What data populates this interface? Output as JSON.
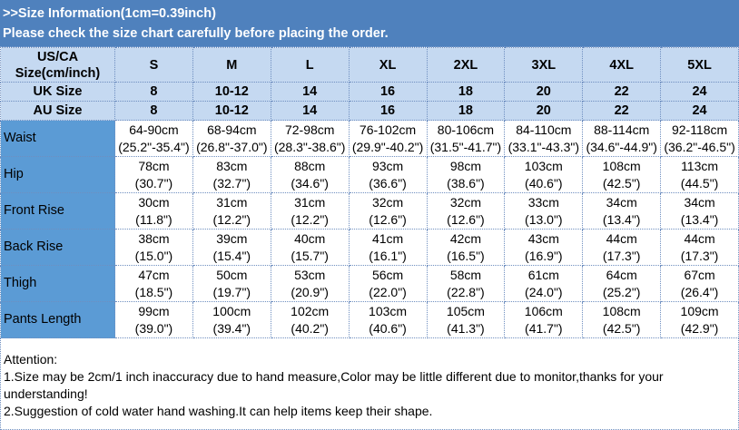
{
  "header": {
    "title": ">>Size Information(1cm=0.39inch)",
    "subtitle": "Please check the size chart carefully before placing the order."
  },
  "size_header": {
    "label": "US/CA Size(cm/inch)",
    "sizes": [
      "S",
      "M",
      "L",
      "XL",
      "2XL",
      "3XL",
      "4XL",
      "5XL"
    ]
  },
  "uk": {
    "label": "UK Size",
    "values": [
      "8",
      "10-12",
      "14",
      "16",
      "18",
      "20",
      "22",
      "24"
    ]
  },
  "au": {
    "label": "AU Size",
    "values": [
      "8",
      "10-12",
      "14",
      "16",
      "18",
      "20",
      "22",
      "24"
    ]
  },
  "rows": [
    {
      "label": "Waist",
      "cm": [
        "64-90cm",
        "68-94cm",
        "72-98cm",
        "76-102cm",
        "80-106cm",
        "84-110cm",
        "88-114cm",
        "92-118cm"
      ],
      "inch": [
        "(25.2\"-35.4\")",
        "(26.8\"-37.0\")",
        "(28.3\"-38.6\")",
        "(29.9\"-40.2\")",
        "(31.5\"-41.7\")",
        "(33.1\"-43.3\")",
        "(34.6\"-44.9\")",
        "(36.2\"-46.5\")"
      ]
    },
    {
      "label": "Hip",
      "cm": [
        "78cm",
        "83cm",
        "88cm",
        "93cm",
        "98cm",
        "103cm",
        "108cm",
        "113cm"
      ],
      "inch": [
        "(30.7\")",
        "(32.7\")",
        "(34.6\")",
        "(36.6\")",
        "(38.6\")",
        "(40.6\")",
        "(42.5\")",
        "(44.5\")"
      ]
    },
    {
      "label": "Front Rise",
      "cm": [
        "30cm",
        "31cm",
        "31cm",
        "32cm",
        "32cm",
        "33cm",
        "34cm",
        "34cm"
      ],
      "inch": [
        "(11.8\")",
        "(12.2\")",
        "(12.2\")",
        "(12.6\")",
        "(12.6\")",
        "(13.0\")",
        "(13.4\")",
        "(13.4\")"
      ]
    },
    {
      "label": "Back Rise",
      "cm": [
        "38cm",
        "39cm",
        "40cm",
        "41cm",
        "42cm",
        "43cm",
        "44cm",
        "44cm"
      ],
      "inch": [
        "(15.0\")",
        "(15.4\")",
        "(15.7\")",
        "(16.1\")",
        "(16.5\")",
        "(16.9\")",
        "(17.3\")",
        "(17.3\")"
      ]
    },
    {
      "label": "Thigh",
      "cm": [
        "47cm",
        "50cm",
        "53cm",
        "56cm",
        "58cm",
        "61cm",
        "64cm",
        "67cm"
      ],
      "inch": [
        "(18.5\")",
        "(19.7\")",
        "(20.9\")",
        "(22.0\")",
        "(22.8\")",
        "(24.0\")",
        "(25.2\")",
        "(26.4\")"
      ]
    },
    {
      "label": "Pants Length",
      "cm": [
        "99cm",
        "100cm",
        "102cm",
        "103cm",
        "105cm",
        "106cm",
        "108cm",
        "109cm"
      ],
      "inch": [
        "(39.0\")",
        "(39.4\")",
        "(40.2\")",
        "(40.6\")",
        "(41.3\")",
        "(41.7\")",
        "(42.5\")",
        "(42.9\")"
      ]
    }
  ],
  "notes": {
    "heading": "Attention:",
    "items": [
      "1.Size may be 2cm/1 inch inaccuracy due to hand measure,Color may be little different due to monitor,thanks for your understanding!",
      "2.Suggestion of cold water hand washing.It can help items keep their shape."
    ]
  },
  "colors": {
    "banner": "#4f81bd",
    "header_rows": "#c5d9f1",
    "label_column": "#5b9bd5"
  }
}
